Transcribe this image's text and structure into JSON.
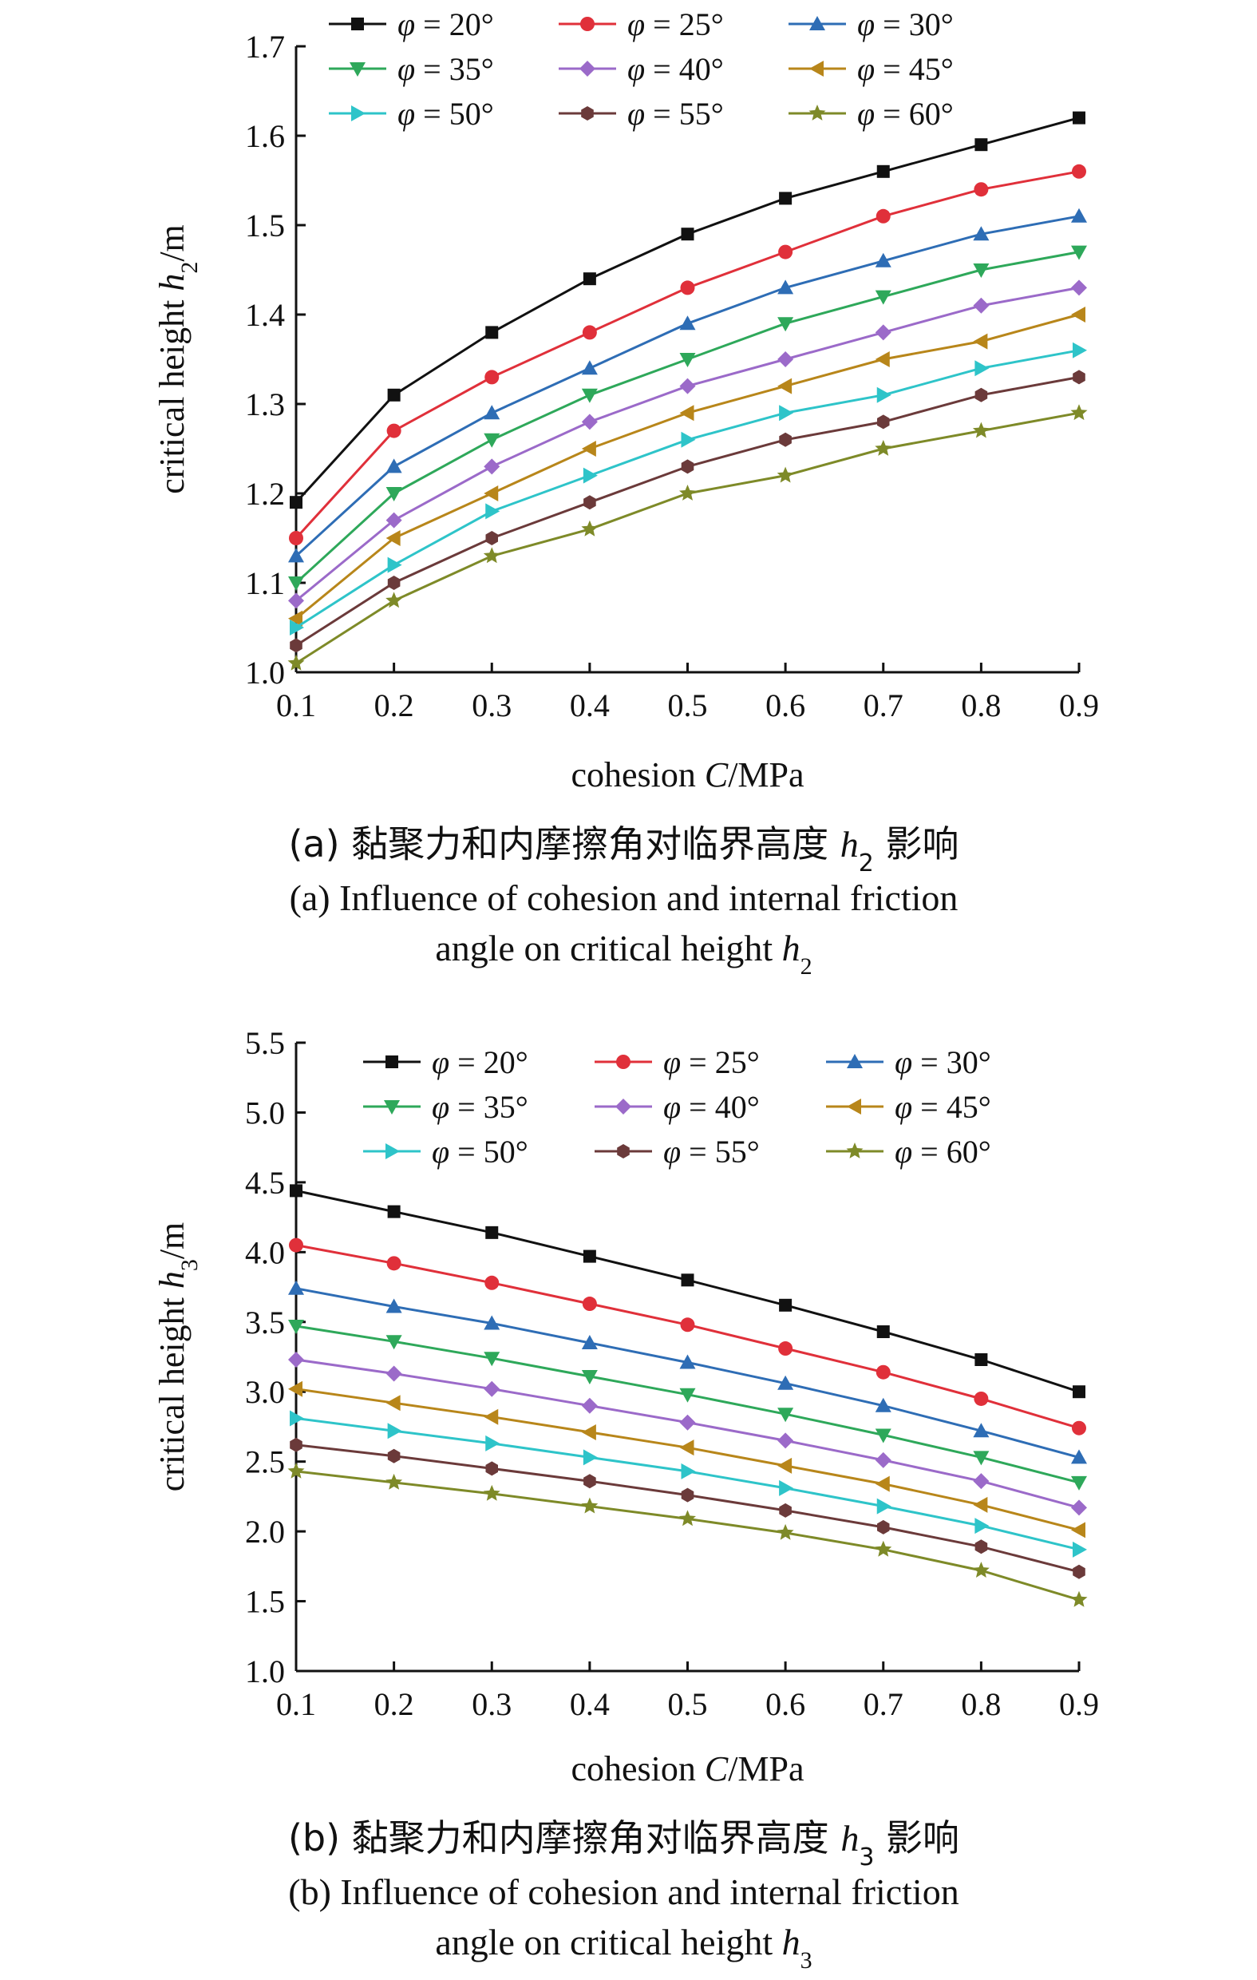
{
  "series_names": [
    "φ = 20°",
    "φ = 25°",
    "φ = 30°",
    "φ = 35°",
    "φ = 40°",
    "φ = 45°",
    "φ = 50°",
    "φ = 55°",
    "φ = 60°"
  ],
  "series_colors": [
    "#111111",
    "#e0303a",
    "#2e6db5",
    "#2ea85a",
    "#9b6ac9",
    "#b8861a",
    "#2ec4c9",
    "#6b3a3a",
    "#7e8a28"
  ],
  "series_markers": [
    "square",
    "circle",
    "triangle-up",
    "triangle-down",
    "diamond",
    "triangle-left",
    "triangle-right",
    "hexagon",
    "star"
  ],
  "chart_data": [
    {
      "type": "line",
      "xlabel": "cohesion C/MPa",
      "ylabel": "critical height h2/m",
      "x": [
        0.1,
        0.2,
        0.3,
        0.4,
        0.5,
        0.6,
        0.7,
        0.8,
        0.9
      ],
      "xticks": [
        "0.1",
        "0.2",
        "0.3",
        "0.4",
        "0.5",
        "0.6",
        "0.7",
        "0.8",
        "0.9"
      ],
      "yticks": [
        "1.0",
        "1.1",
        "1.2",
        "1.3",
        "1.4",
        "1.5",
        "1.6",
        "1.7"
      ],
      "xlim": [
        0.1,
        0.9
      ],
      "ylim": [
        1.0,
        1.7
      ],
      "legend_position": "top",
      "series": [
        {
          "name": "φ = 20°",
          "values": [
            1.19,
            1.31,
            1.38,
            1.44,
            1.49,
            1.53,
            1.56,
            1.59,
            1.62
          ]
        },
        {
          "name": "φ = 25°",
          "values": [
            1.15,
            1.27,
            1.33,
            1.38,
            1.43,
            1.47,
            1.51,
            1.54,
            1.56
          ]
        },
        {
          "name": "φ = 30°",
          "values": [
            1.13,
            1.23,
            1.29,
            1.34,
            1.39,
            1.43,
            1.46,
            1.49,
            1.51
          ]
        },
        {
          "name": "φ = 35°",
          "values": [
            1.1,
            1.2,
            1.26,
            1.31,
            1.35,
            1.39,
            1.42,
            1.45,
            1.47
          ]
        },
        {
          "name": "φ = 40°",
          "values": [
            1.08,
            1.17,
            1.23,
            1.28,
            1.32,
            1.35,
            1.38,
            1.41,
            1.43
          ]
        },
        {
          "name": "φ = 45°",
          "values": [
            1.06,
            1.15,
            1.2,
            1.25,
            1.29,
            1.32,
            1.35,
            1.37,
            1.4
          ]
        },
        {
          "name": "φ = 50°",
          "values": [
            1.05,
            1.12,
            1.18,
            1.22,
            1.26,
            1.29,
            1.31,
            1.34,
            1.36
          ]
        },
        {
          "name": "φ = 55°",
          "values": [
            1.03,
            1.1,
            1.15,
            1.19,
            1.23,
            1.26,
            1.28,
            1.31,
            1.33
          ]
        },
        {
          "name": "φ = 60°",
          "values": [
            1.01,
            1.08,
            1.13,
            1.16,
            1.2,
            1.22,
            1.25,
            1.27,
            1.29
          ]
        }
      ],
      "caption_zh": "(a) 黏聚力和内摩擦角对临界高度 h2 影响",
      "caption_en_line1": "(a) Influence of cohesion and internal friction",
      "caption_en_line2": "angle on critical height h2"
    },
    {
      "type": "line",
      "xlabel": "cohesion C/MPa",
      "ylabel": "critical height h3/m",
      "x": [
        0.1,
        0.2,
        0.3,
        0.4,
        0.5,
        0.6,
        0.7,
        0.8,
        0.9
      ],
      "xticks": [
        "0.1",
        "0.2",
        "0.3",
        "0.4",
        "0.5",
        "0.6",
        "0.7",
        "0.8",
        "0.9"
      ],
      "yticks": [
        "1.0",
        "1.5",
        "2.0",
        "2.5",
        "3.0",
        "3.5",
        "4.0",
        "4.5",
        "5.0",
        "5.5"
      ],
      "xlim": [
        0.1,
        0.9
      ],
      "ylim": [
        1.0,
        5.5
      ],
      "legend_position": "top",
      "series": [
        {
          "name": "φ = 20°",
          "values": [
            4.44,
            4.29,
            4.14,
            3.97,
            3.8,
            3.62,
            3.43,
            3.23,
            3.0
          ]
        },
        {
          "name": "φ = 25°",
          "values": [
            4.05,
            3.92,
            3.78,
            3.63,
            3.48,
            3.31,
            3.14,
            2.95,
            2.74
          ]
        },
        {
          "name": "φ = 30°",
          "values": [
            3.74,
            3.61,
            3.49,
            3.35,
            3.21,
            3.06,
            2.9,
            2.72,
            2.53
          ]
        },
        {
          "name": "φ = 35°",
          "values": [
            3.47,
            3.36,
            3.24,
            3.11,
            2.98,
            2.84,
            2.69,
            2.53,
            2.35
          ]
        },
        {
          "name": "φ = 40°",
          "values": [
            3.23,
            3.13,
            3.02,
            2.9,
            2.78,
            2.65,
            2.51,
            2.36,
            2.17
          ]
        },
        {
          "name": "φ = 45°",
          "values": [
            3.02,
            2.92,
            2.82,
            2.71,
            2.6,
            2.47,
            2.34,
            2.19,
            2.01
          ]
        },
        {
          "name": "φ = 50°",
          "values": [
            2.81,
            2.72,
            2.63,
            2.53,
            2.43,
            2.31,
            2.18,
            2.04,
            1.87
          ]
        },
        {
          "name": "φ = 55°",
          "values": [
            2.62,
            2.54,
            2.45,
            2.36,
            2.26,
            2.15,
            2.03,
            1.89,
            1.71
          ]
        },
        {
          "name": "φ = 60°",
          "values": [
            2.43,
            2.35,
            2.27,
            2.18,
            2.09,
            1.99,
            1.87,
            1.72,
            1.51
          ]
        }
      ],
      "caption_zh": "(b) 黏聚力和内摩擦角对临界高度 h3 影响",
      "caption_en_line1": "(b) Influence of cohesion and internal friction",
      "caption_en_line2": "angle on critical height h3"
    }
  ]
}
